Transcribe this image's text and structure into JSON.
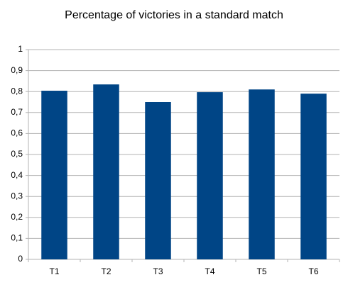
{
  "chart_data": {
    "type": "bar",
    "title": "Percentage of victories in a standard match",
    "categories": [
      "T1",
      "T2",
      "T3",
      "T4",
      "T5",
      "T6"
    ],
    "values": [
      0.804,
      0.834,
      0.75,
      0.797,
      0.81,
      0.79
    ],
    "color": "#004586",
    "ylim": [
      0,
      1
    ],
    "yticks": [
      0,
      {
        "value": 0.1,
        "label": "0,1"
      },
      {
        "value": 0.2,
        "label": "0,2"
      },
      {
        "value": 0.3,
        "label": "0,3"
      },
      {
        "value": 0.4,
        "label": "0,4"
      },
      {
        "value": 0.5,
        "label": "0,5"
      },
      {
        "value": 0.6,
        "label": "0,6"
      },
      {
        "value": 0.7,
        "label": "0,7"
      },
      {
        "value": 0.8,
        "label": "0,8"
      },
      {
        "value": 0.9,
        "label": "0,9"
      },
      1
    ],
    "grid": true
  }
}
